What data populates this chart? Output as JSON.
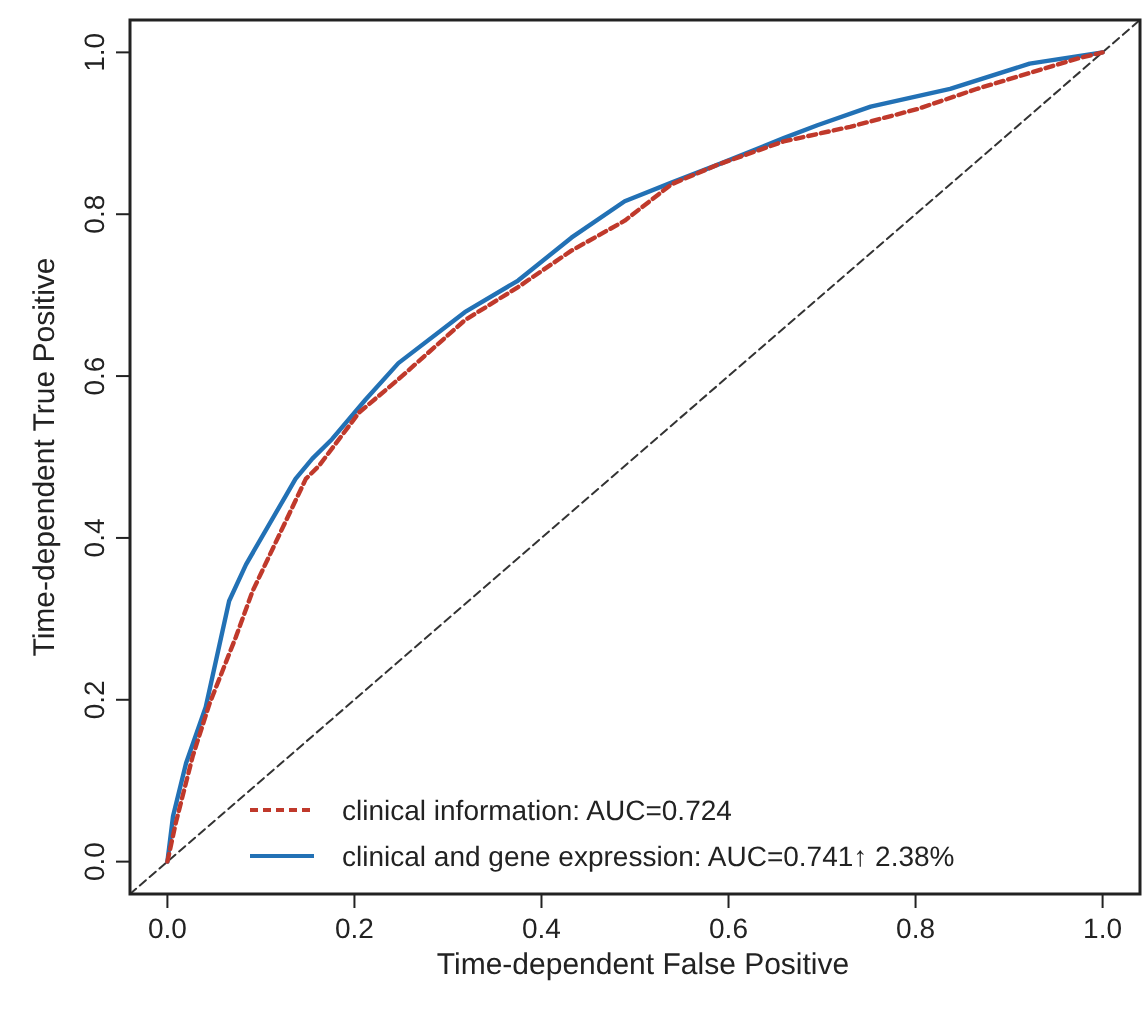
{
  "chart_data": {
    "type": "line",
    "xlabel": "Time-dependent False Positive",
    "ylabel": "Time-dependent True Positive",
    "xlim": [
      -0.04,
      1.04
    ],
    "ylim": [
      -0.04,
      1.04
    ],
    "xticks": [
      {
        "value": 0,
        "label": "0.0"
      },
      0.2,
      0.4,
      0.6,
      0.8,
      {
        "value": 1,
        "label": "1.0"
      }
    ],
    "yticks": [
      {
        "value": 0,
        "label": "0.0"
      },
      0.2,
      0.4,
      0.6,
      0.8,
      {
        "value": 1,
        "label": "1.0"
      }
    ],
    "grid": false,
    "legend": "bottom right",
    "marker": "none",
    "series": [
      {
        "name": "clinical information: AUC=0.724",
        "color": "#c0392b",
        "line_style": "dashed",
        "x": [
          0,
          0.009,
          0.027,
          0.045,
          0.073,
          0.091,
          0.148,
          0.162,
          0.205,
          0.247,
          0.318,
          0.375,
          0.432,
          0.489,
          0.539,
          0.588,
          0.659,
          0.73,
          0.802,
          0.866,
          0.972,
          1
        ],
        "values": [
          0,
          0.048,
          0.13,
          0.195,
          0.277,
          0.334,
          0.473,
          0.489,
          0.555,
          0.596,
          0.669,
          0.71,
          0.755,
          0.792,
          0.837,
          0.861,
          0.89,
          0.908,
          0.93,
          0.955,
          0.992,
          1
        ]
      },
      {
        "name": "clinical and gene expression: AUC=0.741↑  2.38%",
        "color": "#2271b5",
        "line_style": "solid",
        "x": [
          0,
          0.006,
          0.02,
          0.041,
          0.066,
          0.084,
          0.127,
          0.137,
          0.155,
          0.176,
          0.212,
          0.247,
          0.318,
          0.375,
          0.432,
          0.489,
          0.539,
          0.588,
          0.659,
          0.695,
          0.752,
          0.837,
          0.922,
          1
        ],
        "values": [
          0,
          0.056,
          0.122,
          0.191,
          0.322,
          0.367,
          0.453,
          0.473,
          0.498,
          0.522,
          0.571,
          0.616,
          0.679,
          0.718,
          0.771,
          0.816,
          0.839,
          0.861,
          0.894,
          0.91,
          0.933,
          0.955,
          0.986,
          1
        ]
      },
      {
        "color": "#333333",
        "line_style": "dashed",
        "x": [
          -0.04,
          1.04
        ],
        "values": [
          -0.04,
          1.04
        ]
      }
    ]
  }
}
